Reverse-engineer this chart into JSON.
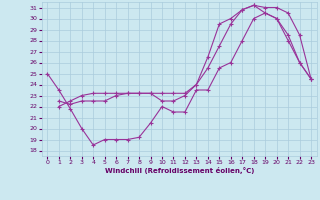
{
  "xlabel": "Windchill (Refroidissement éolien,°C)",
  "xlim": [
    -0.5,
    23.5
  ],
  "ylim": [
    17.5,
    31.5
  ],
  "xticks": [
    0,
    1,
    2,
    3,
    4,
    5,
    6,
    7,
    8,
    9,
    10,
    11,
    12,
    13,
    14,
    15,
    16,
    17,
    18,
    19,
    20,
    21,
    22,
    23
  ],
  "yticks": [
    18,
    19,
    20,
    21,
    22,
    23,
    24,
    25,
    26,
    27,
    28,
    29,
    30,
    31
  ],
  "bg_color": "#cce8f0",
  "line_color": "#993399",
  "line1_x": [
    0,
    1,
    2,
    3,
    4,
    5,
    6,
    7,
    8,
    9,
    10,
    11,
    12,
    13,
    14,
    15,
    16,
    17,
    18,
    19,
    20,
    21,
    22,
    23
  ],
  "line1_y": [
    25.0,
    23.5,
    21.8,
    20.0,
    18.5,
    19.0,
    19.0,
    19.0,
    19.2,
    20.5,
    22.0,
    21.5,
    21.5,
    23.5,
    23.5,
    25.5,
    26.0,
    28.0,
    30.0,
    30.5,
    30.0,
    28.5,
    26.0,
    24.5
  ],
  "line2_x": [
    1,
    2,
    3,
    4,
    5,
    6,
    7,
    8,
    9,
    10,
    11,
    12,
    13,
    14,
    15,
    16,
    17,
    18,
    19,
    20,
    21,
    22,
    23
  ],
  "line2_y": [
    22.5,
    22.2,
    22.5,
    22.5,
    22.5,
    23.0,
    23.2,
    23.2,
    23.2,
    22.5,
    22.5,
    23.0,
    24.0,
    26.5,
    29.5,
    30.0,
    30.8,
    31.2,
    30.5,
    30.0,
    28.0,
    26.0,
    24.5
  ],
  "line3_x": [
    1,
    2,
    3,
    4,
    5,
    6,
    7,
    8,
    9,
    10,
    11,
    12,
    13,
    14,
    15,
    16,
    17,
    18,
    19,
    20,
    21,
    22,
    23
  ],
  "line3_y": [
    22.0,
    22.5,
    23.0,
    23.2,
    23.2,
    23.2,
    23.2,
    23.2,
    23.2,
    23.2,
    23.2,
    23.2,
    24.0,
    25.5,
    27.5,
    29.5,
    30.8,
    31.2,
    31.0,
    31.0,
    30.5,
    28.5,
    24.5
  ]
}
